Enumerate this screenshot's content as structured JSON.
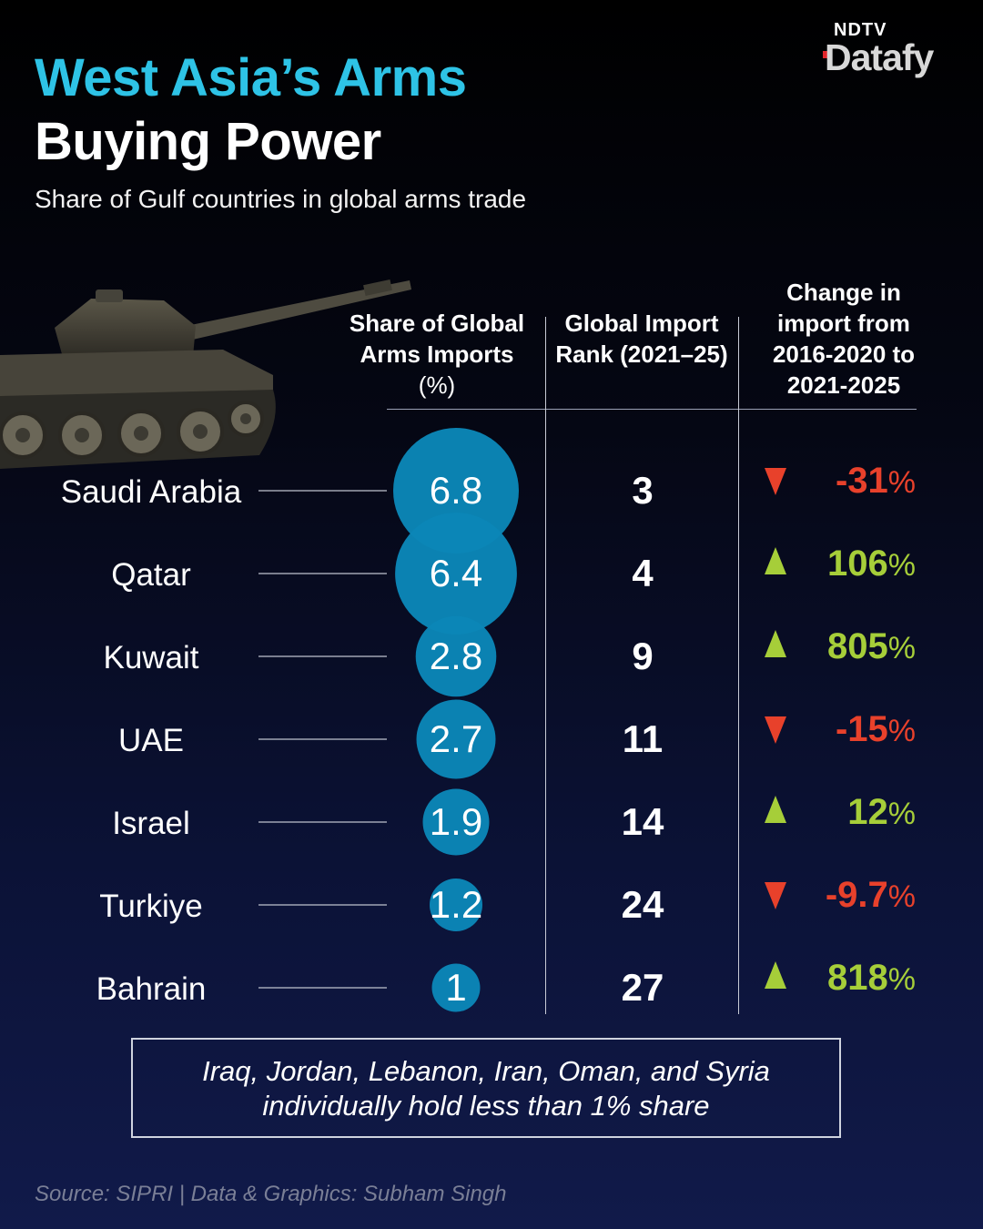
{
  "header": {
    "title_line1": "West Asia’s Arms",
    "title_line2": "Buying Power",
    "subtitle": "Share of Gulf countries in global arms trade"
  },
  "logo": {
    "brand": "NDTV",
    "product": "Datafy"
  },
  "columns": {
    "share_label": "Share of Global Arms Imports",
    "share_unit": "(%)",
    "rank_label": "Global Import Rank (2021–25)",
    "change_label": "Change in import from 2016-2020 to 2021-2025"
  },
  "colors": {
    "bubble": "#0b86b7",
    "up": "#a6ce39",
    "down": "#e8412b",
    "title_accent": "#2ec3e6"
  },
  "chart_data": {
    "type": "table",
    "title": "West Asia’s Arms Buying Power",
    "subtitle": "Share of Gulf countries in global arms trade",
    "columns": [
      "Share of Global Arms Imports (%)",
      "Global Import Rank (2021–25)",
      "Change in import from 2016-2020 to 2021-2025"
    ],
    "rows": [
      {
        "country": "Saudi Arabia",
        "share": 6.8,
        "share_label": "6.8",
        "rank": "3",
        "change": "-31",
        "direction": "down"
      },
      {
        "country": "Qatar",
        "share": 6.4,
        "share_label": "6.4",
        "rank": "4",
        "change": "106",
        "direction": "up"
      },
      {
        "country": "Kuwait",
        "share": 2.8,
        "share_label": "2.8",
        "rank": "9",
        "change": "805",
        "direction": "up"
      },
      {
        "country": "UAE",
        "share": 2.7,
        "share_label": "2.7",
        "rank": "11",
        "change": "-15",
        "direction": "down"
      },
      {
        "country": "Israel",
        "share": 1.9,
        "share_label": "1.9",
        "rank": "14",
        "change": "12",
        "direction": "up"
      },
      {
        "country": "Turkiye",
        "share": 1.2,
        "share_label": "1.2",
        "rank": "24",
        "change": "-9.7",
        "direction": "down"
      },
      {
        "country": "Bahrain",
        "share": 1.0,
        "share_label": "1",
        "rank": "27",
        "change": "818",
        "direction": "up"
      }
    ]
  },
  "note": "Iraq, Jordan, Lebanon, Iran, Oman, and Syria individually hold less than 1% share",
  "source": "Source: SIPRI | Data & Graphics: Subham Singh"
}
